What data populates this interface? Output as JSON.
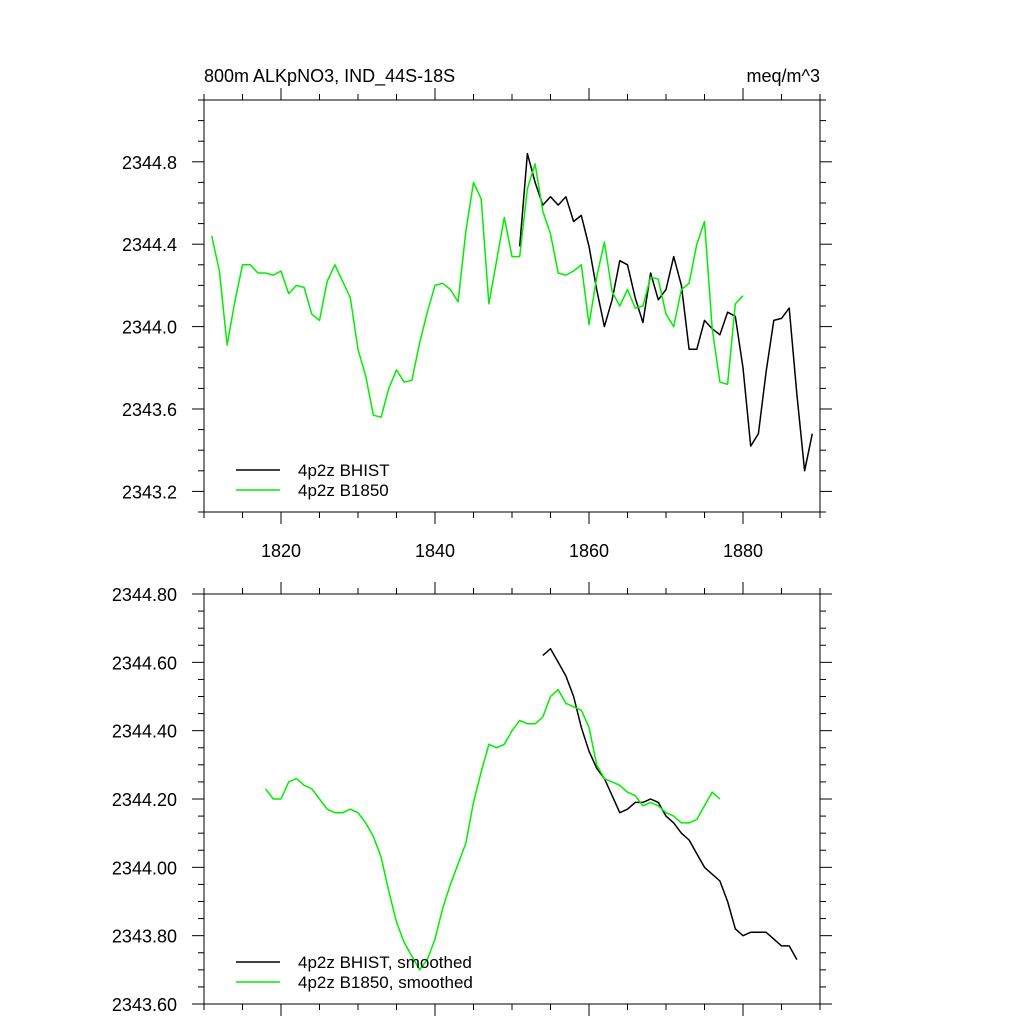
{
  "chart_data": [
    {
      "type": "line",
      "title": "800m ALKpNO3, IND_44S-18S",
      "units": "meq/m^3",
      "xlim": [
        1810,
        1890
      ],
      "ylim": [
        2343.1,
        2345.1
      ],
      "xticks": [
        1820,
        1840,
        1860,
        1880
      ],
      "xtick_labels": [
        "1820",
        "1840",
        "1860",
        "1880"
      ],
      "yticks": [
        2343.2,
        2343.6,
        2344.0,
        2344.4,
        2344.8
      ],
      "ytick_labels": [
        "2343.2",
        "2343.6",
        "2344.0",
        "2344.4",
        "2344.8"
      ],
      "legend": "bottom-left",
      "series": [
        {
          "name": "4p2z BHIST",
          "color": "#000000",
          "x": [
            1851,
            1852,
            1853,
            1854,
            1855,
            1856,
            1857,
            1858,
            1859,
            1860,
            1861,
            1862,
            1863,
            1864,
            1865,
            1866,
            1867,
            1868,
            1869,
            1870,
            1871,
            1872,
            1873,
            1874,
            1875,
            1876,
            1877,
            1878,
            1879,
            1880,
            1881,
            1882,
            1883,
            1884,
            1885,
            1886,
            1887,
            1888,
            1889
          ],
          "y": [
            2344.39,
            2344.84,
            2344.7,
            2344.59,
            2344.63,
            2344.59,
            2344.63,
            2344.51,
            2344.54,
            2344.39,
            2344.18,
            2344.0,
            2344.13,
            2344.32,
            2344.3,
            2344.14,
            2344.02,
            2344.26,
            2344.13,
            2344.18,
            2344.34,
            2344.2,
            2343.89,
            2343.89,
            2344.03,
            2343.99,
            2343.96,
            2344.07,
            2344.05,
            2343.8,
            2343.42,
            2343.48,
            2343.78,
            2344.03,
            2344.04,
            2344.09,
            2343.67,
            2343.3,
            2343.48
          ]
        },
        {
          "name": "4p2z B1850",
          "color": "#00ee00",
          "x": [
            1811,
            1812,
            1813,
            1814,
            1815,
            1816,
            1817,
            1818,
            1819,
            1820,
            1821,
            1822,
            1823,
            1824,
            1825,
            1826,
            1827,
            1828,
            1829,
            1830,
            1831,
            1832,
            1833,
            1834,
            1835,
            1836,
            1837,
            1838,
            1839,
            1840,
            1841,
            1842,
            1843,
            1844,
            1845,
            1846,
            1847,
            1848,
            1849,
            1850,
            1851,
            1852,
            1853,
            1854,
            1855,
            1856,
            1857,
            1858,
            1859,
            1860,
            1861,
            1862,
            1863,
            1864,
            1865,
            1866,
            1867,
            1868,
            1869,
            1870,
            1871,
            1872,
            1873,
            1874,
            1875,
            1876,
            1877,
            1878,
            1879,
            1880
          ],
          "y": [
            2344.44,
            2344.27,
            2343.91,
            2344.12,
            2344.3,
            2344.3,
            2344.26,
            2344.26,
            2344.25,
            2344.27,
            2344.16,
            2344.2,
            2344.19,
            2344.06,
            2344.03,
            2344.22,
            2344.3,
            2344.22,
            2344.14,
            2343.89,
            2343.76,
            2343.57,
            2343.56,
            2343.7,
            2343.79,
            2343.73,
            2343.74,
            2343.92,
            2344.07,
            2344.2,
            2344.21,
            2344.18,
            2344.12,
            2344.46,
            2344.7,
            2344.62,
            2344.11,
            2344.32,
            2344.53,
            2344.34,
            2344.34,
            2344.67,
            2344.79,
            2344.56,
            2344.45,
            2344.26,
            2344.25,
            2344.27,
            2344.3,
            2344.01,
            2344.24,
            2344.41,
            2344.17,
            2344.1,
            2344.18,
            2344.09,
            2344.1,
            2344.24,
            2344.23,
            2344.06,
            2344.0,
            2344.18,
            2344.21,
            2344.4,
            2344.51,
            2343.99,
            2343.73,
            2343.72,
            2344.11,
            2344.15
          ]
        }
      ]
    },
    {
      "type": "line",
      "xlim": [
        1810,
        1890
      ],
      "ylim": [
        2343.6,
        2344.8
      ],
      "xticks": [
        1820,
        1840,
        1860,
        1880
      ],
      "yticks": [
        2343.6,
        2343.8,
        2344.0,
        2344.2,
        2344.4,
        2344.6,
        2344.8
      ],
      "ytick_labels": [
        "2343.60",
        "2343.80",
        "2344.00",
        "2344.20",
        "2344.40",
        "2344.60",
        "2344.80"
      ],
      "legend": "bottom-left",
      "series": [
        {
          "name": "4p2z BHIST, smoothed",
          "color": "#000000",
          "x": [
            1854,
            1855,
            1856,
            1857,
            1858,
            1859,
            1860,
            1861,
            1862,
            1863,
            1864,
            1865,
            1866,
            1867,
            1868,
            1869,
            1870,
            1871,
            1872,
            1873,
            1874,
            1875,
            1876,
            1877,
            1878,
            1879,
            1880,
            1881,
            1882,
            1883,
            1884,
            1885,
            1886,
            1887
          ],
          "y": [
            2344.62,
            2344.64,
            2344.6,
            2344.56,
            2344.5,
            2344.41,
            2344.34,
            2344.29,
            2344.26,
            2344.21,
            2344.16,
            2344.17,
            2344.19,
            2344.19,
            2344.2,
            2344.19,
            2344.15,
            2344.13,
            2344.1,
            2344.08,
            2344.04,
            2344.0,
            2343.98,
            2343.96,
            2343.9,
            2343.82,
            2343.8,
            2343.81,
            2343.81,
            2343.81,
            2343.79,
            2343.77,
            2343.77,
            2343.73
          ]
        },
        {
          "name": "4p2z B1850, smoothed",
          "color": "#00ee00",
          "x": [
            1818,
            1819,
            1820,
            1821,
            1822,
            1823,
            1824,
            1825,
            1826,
            1827,
            1828,
            1829,
            1830,
            1831,
            1832,
            1833,
            1834,
            1835,
            1836,
            1837,
            1838,
            1839,
            1840,
            1841,
            1842,
            1843,
            1844,
            1845,
            1846,
            1847,
            1848,
            1849,
            1850,
            1851,
            1852,
            1853,
            1854,
            1855,
            1856,
            1857,
            1858,
            1859,
            1860,
            1861,
            1862,
            1863,
            1864,
            1865,
            1866,
            1867,
            1868,
            1869,
            1870,
            1871,
            1872,
            1873,
            1874,
            1875,
            1876,
            1877
          ],
          "y": [
            2344.23,
            2344.2,
            2344.2,
            2344.25,
            2344.26,
            2344.24,
            2344.23,
            2344.2,
            2344.17,
            2344.16,
            2344.16,
            2344.17,
            2344.16,
            2344.13,
            2344.09,
            2344.03,
            2343.93,
            2343.84,
            2343.78,
            2343.74,
            2343.7,
            2343.73,
            2343.79,
            2343.88,
            2343.95,
            2344.01,
            2344.07,
            2344.19,
            2344.28,
            2344.36,
            2344.35,
            2344.36,
            2344.4,
            2344.43,
            2344.42,
            2344.42,
            2344.44,
            2344.5,
            2344.52,
            2344.48,
            2344.47,
            2344.46,
            2344.41,
            2344.3,
            2344.26,
            2344.25,
            2344.24,
            2344.22,
            2344.21,
            2344.18,
            2344.19,
            2344.18,
            2344.16,
            2344.15,
            2344.13,
            2344.13,
            2344.14,
            2344.18,
            2344.22,
            2344.2
          ]
        }
      ]
    }
  ]
}
